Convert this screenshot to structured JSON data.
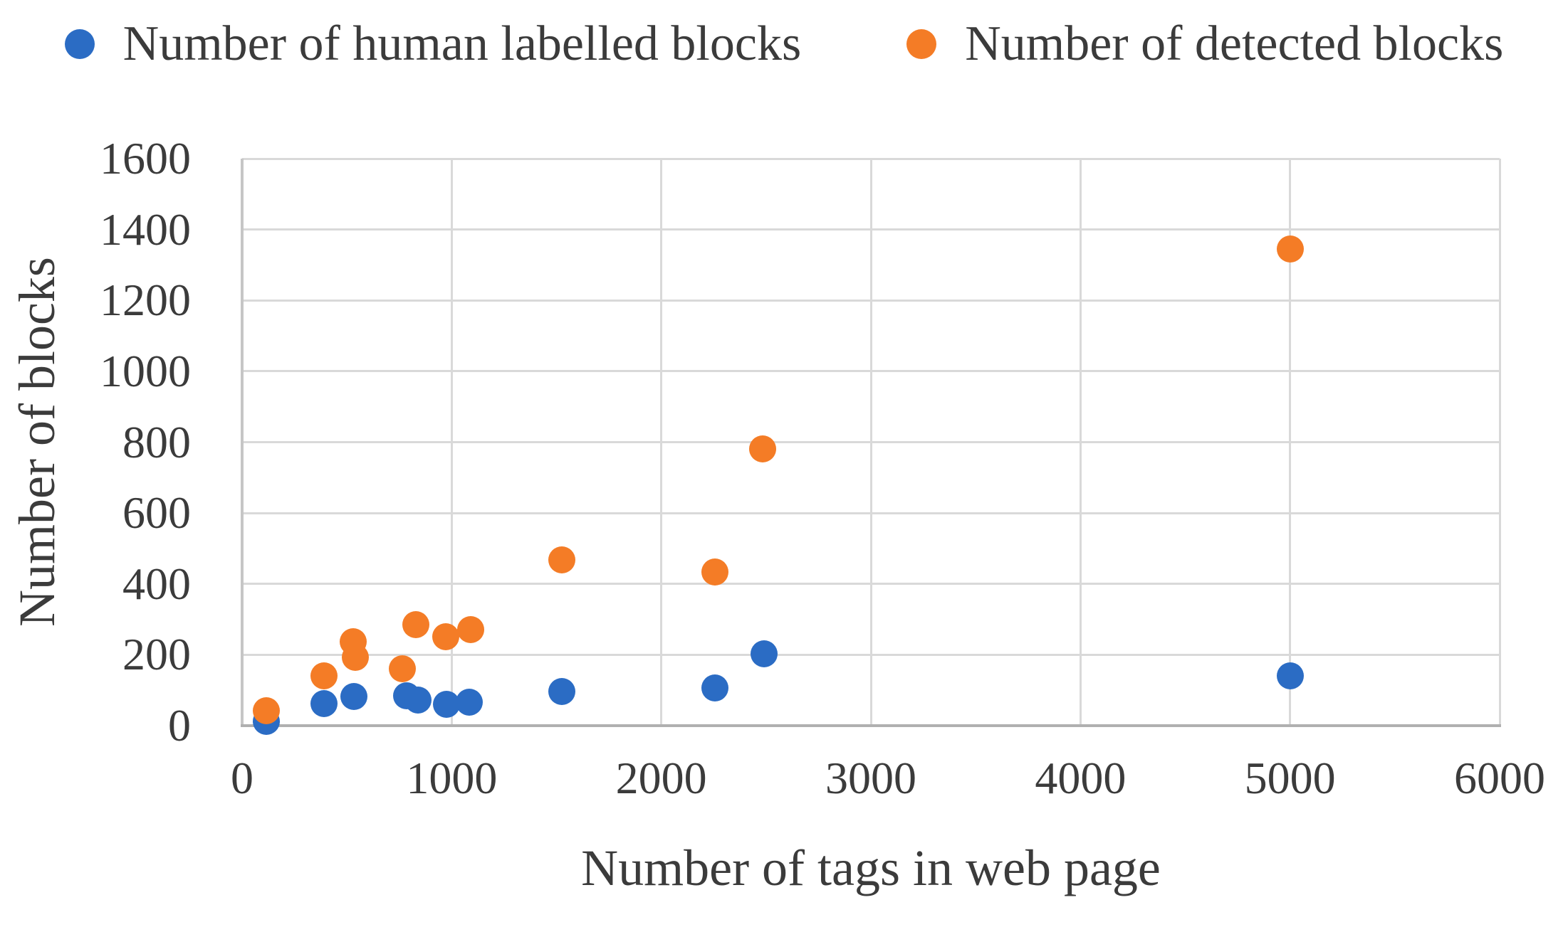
{
  "colors": {
    "background": "#ffffff",
    "grid": "#d9d9d9",
    "axis_bottom": "#b0b0b0",
    "axis_left": "#c6c6c6",
    "text": "#3b3b3b",
    "series_blue": "#2b6cc4",
    "series_orange": "#f47c26"
  },
  "chart_data": {
    "type": "scatter",
    "title": "",
    "xlabel": "Number of tags in web page",
    "ylabel": "Number of blocks",
    "xlim": [
      0,
      6000
    ],
    "ylim": [
      0,
      1600
    ],
    "x_ticks": [
      0,
      1000,
      2000,
      3000,
      4000,
      5000,
      6000
    ],
    "y_ticks": [
      0,
      200,
      400,
      600,
      800,
      1000,
      1200,
      1400,
      1600
    ],
    "grid": true,
    "legend_position": "top",
    "series": [
      {
        "name": "Number of human labelled blocks",
        "color": "#2b6cc4",
        "points": [
          [
            115,
            12
          ],
          [
            390,
            62
          ],
          [
            535,
            83
          ],
          [
            785,
            85
          ],
          [
            840,
            73
          ],
          [
            975,
            60
          ],
          [
            1085,
            66
          ],
          [
            1525,
            96
          ],
          [
            2255,
            106
          ],
          [
            2490,
            203
          ],
          [
            5000,
            140
          ]
        ]
      },
      {
        "name": "Number of detected blocks",
        "color": "#f47c26",
        "points": [
          [
            115,
            42
          ],
          [
            390,
            140
          ],
          [
            530,
            237
          ],
          [
            540,
            192
          ],
          [
            765,
            160
          ],
          [
            830,
            285
          ],
          [
            970,
            250
          ],
          [
            1090,
            272
          ],
          [
            1525,
            467
          ],
          [
            2255,
            434
          ],
          [
            2485,
            780
          ],
          [
            5000,
            1345
          ]
        ]
      }
    ]
  }
}
